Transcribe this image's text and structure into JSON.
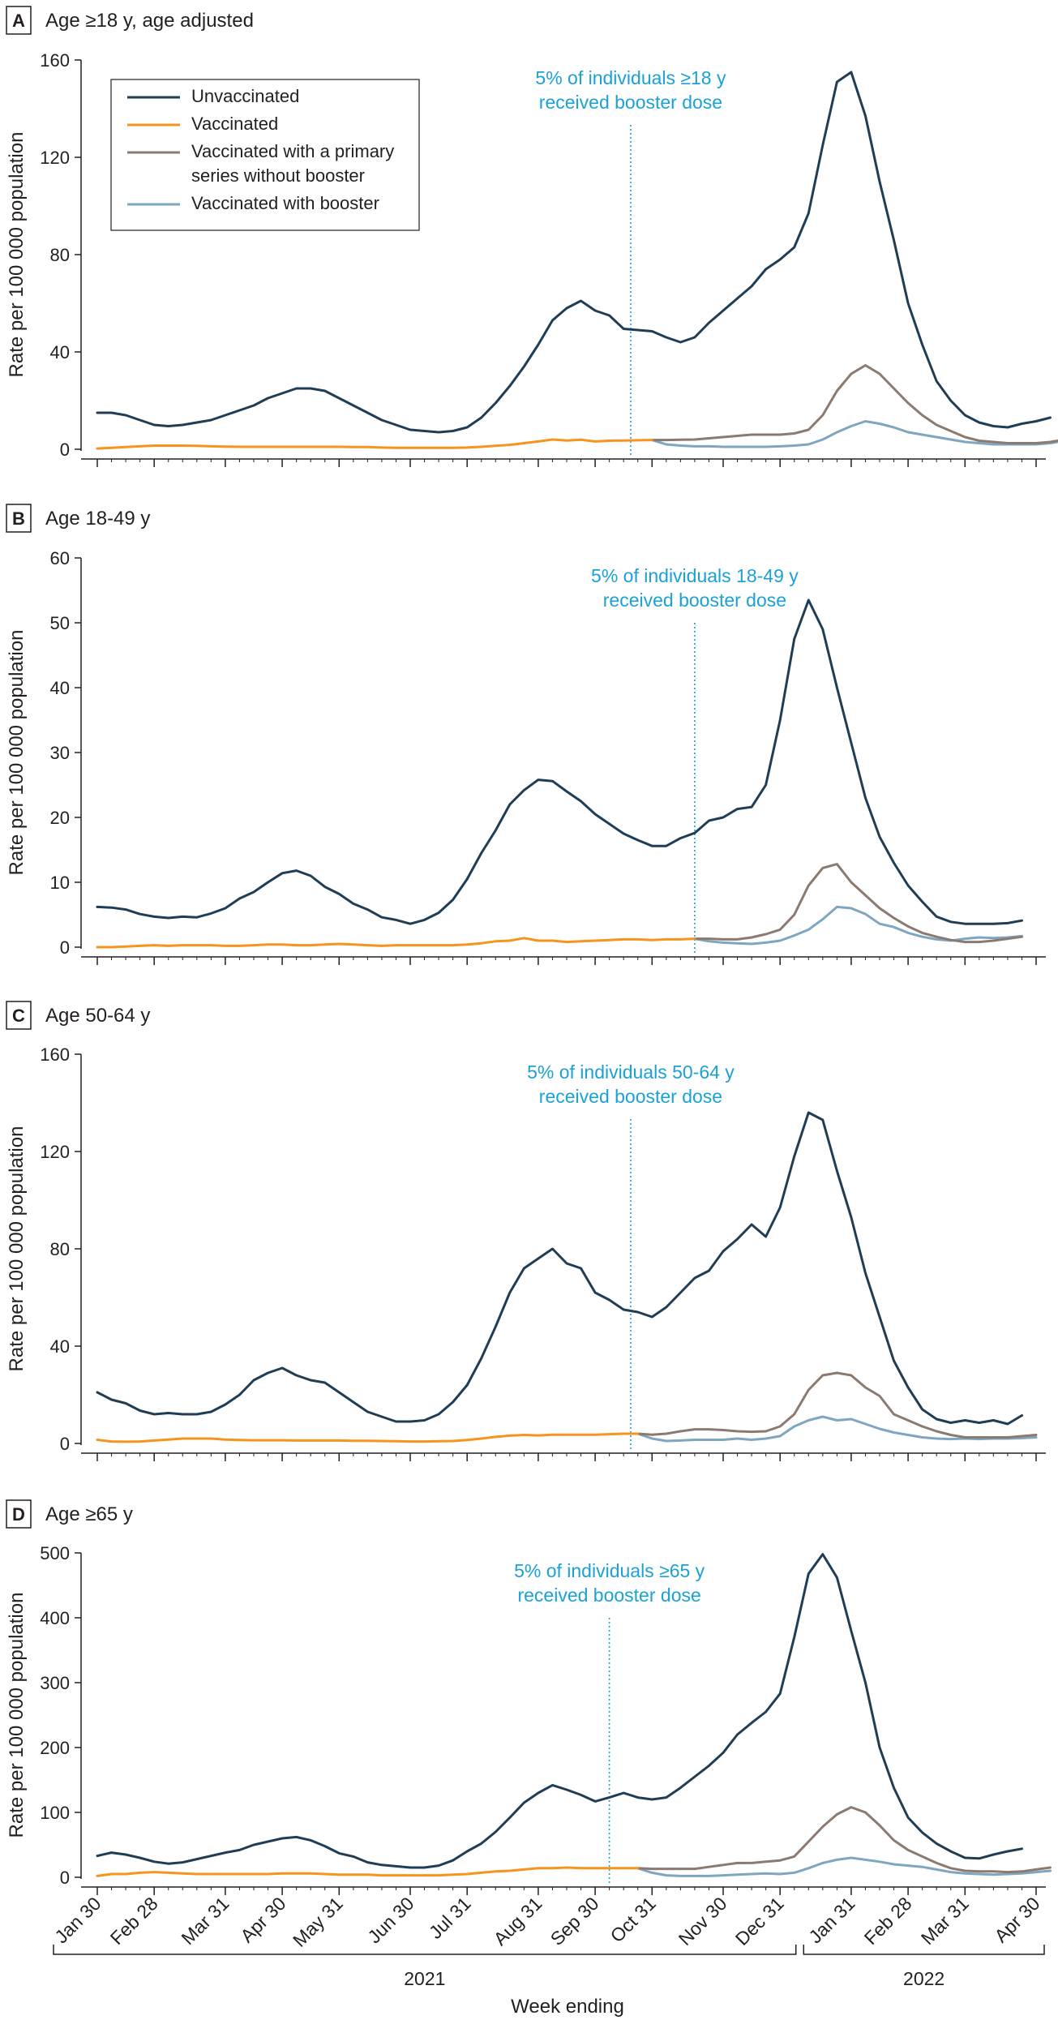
{
  "colors": {
    "unvaccinated": "#1f3e55",
    "vaccinated": "#f7941d",
    "primary_no_booster": "#8b7a6f",
    "booster": "#7fa6c0",
    "annotation": "#1ba1d6",
    "axis": "#231f20"
  },
  "legend": [
    {
      "key": "unvaccinated",
      "label": [
        "Unvaccinated"
      ]
    },
    {
      "key": "vaccinated",
      "label": [
        "Vaccinated"
      ]
    },
    {
      "key": "primary_no_booster",
      "label": [
        "Vaccinated with a primary",
        "series without booster"
      ]
    },
    {
      "key": "booster",
      "label": [
        "Vaccinated with booster"
      ]
    }
  ],
  "x_axis": {
    "label": "Week ending",
    "tick_labels": [
      "Jan 30",
      "Feb 28",
      "Mar 31",
      "Apr 30",
      "May 31",
      "Jun 30",
      "Jul 31",
      "Aug 31",
      "Sep 30",
      "Oct 31",
      "Nov 30",
      "Dec 31",
      "Jan 31",
      "Feb 28",
      "Mar 31",
      "Apr 30"
    ],
    "tick_weeks": [
      0,
      4,
      9,
      13,
      17,
      22,
      26,
      31,
      35,
      39,
      44,
      48,
      53,
      57,
      61,
      66
    ],
    "years": [
      {
        "label": "2021",
        "from_week": 0,
        "to_week": 49
      },
      {
        "label": "2022",
        "from_week": 50,
        "to_week": 66
      }
    ]
  },
  "ylabel": "Rate per 100 000 population",
  "chart_data": [
    {
      "type": "line",
      "panel": "A",
      "title": "Age ≥18 y, age adjusted",
      "ylabel": "Rate per 100 000 population",
      "ylim": [
        0,
        160
      ],
      "yticks": [
        0,
        40,
        80,
        120,
        160
      ],
      "annotation": {
        "week": 37.5,
        "lines": [
          "5% of individuals ≥18 y",
          "received booster dose"
        ]
      },
      "legend_placement": "top-left",
      "grid": false,
      "series": [
        {
          "key": "unvaccinated",
          "name": "Unvaccinated",
          "start": 0,
          "values": [
            15,
            15,
            14,
            12,
            10,
            9.5,
            10,
            11,
            12,
            14,
            16,
            18,
            21,
            23,
            25,
            25,
            24,
            21,
            18,
            15,
            12,
            10,
            8,
            7.5,
            7,
            7.5,
            9,
            13,
            19,
            26,
            34,
            43,
            53,
            58,
            61,
            57,
            55,
            49.5,
            49,
            48.5,
            46,
            44,
            46,
            52,
            57,
            62,
            67,
            74,
            78,
            83,
            97,
            125,
            151,
            155,
            137,
            110,
            86,
            60,
            43,
            28,
            20,
            14,
            11,
            9.5,
            9,
            10.5,
            11.5,
            13
          ]
        },
        {
          "key": "vaccinated",
          "name": "Vaccinated",
          "start": 0,
          "values": [
            0.3,
            0.6,
            0.9,
            1.2,
            1.5,
            1.5,
            1.5,
            1.4,
            1.2,
            1.1,
            1.0,
            1.0,
            1.0,
            1.0,
            1.0,
            1.0,
            1.0,
            1.0,
            0.9,
            0.9,
            0.7,
            0.6,
            0.6,
            0.6,
            0.6,
            0.6,
            0.7,
            1.0,
            1.4,
            1.8,
            2.5,
            3.2,
            4,
            3.6,
            3.9,
            3.2,
            3.5,
            3.6,
            3.7,
            3.8
          ]
        },
        {
          "key": "primary_no_booster",
          "name": "Vaccinated with a primary series without booster",
          "start": 39,
          "values": [
            3.8,
            3.8,
            3.9,
            4,
            4.5,
            5,
            5.5,
            6,
            6,
            6,
            6.5,
            8,
            14,
            24,
            31,
            34.5,
            31,
            25,
            19,
            14,
            10,
            7.5,
            5,
            3.5,
            3,
            2.5,
            2.5,
            2.5,
            3,
            4
          ]
        },
        {
          "key": "booster",
          "name": "Vaccinated with booster",
          "start": 39,
          "values": [
            3.8,
            2,
            1.5,
            1.2,
            1.2,
            1,
            1,
            1,
            1,
            1.2,
            1.5,
            2,
            4,
            7,
            9.5,
            11.5,
            10.5,
            9,
            7,
            6,
            5,
            4,
            3,
            2.5,
            2,
            2,
            2,
            2,
            2.5,
            3.5
          ]
        }
      ]
    },
    {
      "type": "line",
      "panel": "B",
      "title": "Age 18-49 y",
      "ylabel": "Rate per 100 000 population",
      "ylim": [
        0,
        60
      ],
      "yticks": [
        0,
        10,
        20,
        30,
        40,
        50,
        60
      ],
      "annotation": {
        "week": 42,
        "lines": [
          "5% of individuals 18-49 y",
          "received booster dose"
        ]
      },
      "grid": false,
      "series": [
        {
          "key": "unvaccinated",
          "name": "Unvaccinated",
          "start": 0,
          "values": [
            6.2,
            6.1,
            5.8,
            5.1,
            4.7,
            4.5,
            4.7,
            4.6,
            5.2,
            6.0,
            7.5,
            8.5,
            10,
            11.4,
            11.8,
            11,
            9.3,
            8.2,
            6.7,
            5.8,
            4.6,
            4.2,
            3.6,
            4.2,
            5.3,
            7.3,
            10.5,
            14.5,
            18,
            22,
            24.2,
            25.8,
            25.6,
            24,
            22.5,
            20.5,
            19,
            17.5,
            16.5,
            15.6,
            15.6,
            16.8,
            17.6,
            19.5,
            20,
            21.3,
            21.6,
            25,
            35,
            47.5,
            53.5,
            49,
            40,
            31.5,
            23,
            17,
            13,
            9.5,
            7,
            4.7,
            3.9,
            3.6,
            3.6,
            3.6,
            3.7,
            4.1
          ]
        },
        {
          "key": "vaccinated",
          "name": "Vaccinated",
          "start": 0,
          "values": [
            0.0,
            0.0,
            0.1,
            0.2,
            0.3,
            0.2,
            0.3,
            0.3,
            0.3,
            0.2,
            0.2,
            0.3,
            0.4,
            0.4,
            0.3,
            0.3,
            0.4,
            0.5,
            0.4,
            0.3,
            0.2,
            0.3,
            0.3,
            0.3,
            0.3,
            0.3,
            0.4,
            0.6,
            0.9,
            1.0,
            1.4,
            1.0,
            1.0,
            0.8,
            0.9,
            1.0,
            1.1,
            1.2,
            1.2,
            1.1,
            1.2,
            1.2,
            1.3
          ]
        },
        {
          "key": "primary_no_booster",
          "name": "Vaccinated with a primary series without booster",
          "start": 42,
          "values": [
            1.3,
            1.3,
            1.2,
            1.2,
            1.5,
            2,
            2.7,
            5,
            9.5,
            12.2,
            12.8,
            10,
            8,
            6,
            4.5,
            3.2,
            2.2,
            1.6,
            1.1,
            0.8,
            0.8,
            1.0,
            1.3,
            1.6
          ]
        },
        {
          "key": "booster",
          "name": "Vaccinated with booster",
          "start": 42,
          "values": [
            1.3,
            0.9,
            0.7,
            0.6,
            0.5,
            0.7,
            1,
            1.8,
            2.7,
            4.3,
            6.2,
            6,
            5.1,
            3.6,
            3.1,
            2.2,
            1.6,
            1.2,
            1.0,
            1.3,
            1.5,
            1.4,
            1.5,
            1.7
          ]
        }
      ]
    },
    {
      "type": "line",
      "panel": "C",
      "title": "Age 50-64 y",
      "ylabel": "Rate per 100 000 population",
      "ylim": [
        0,
        160
      ],
      "yticks": [
        0,
        40,
        80,
        120,
        160
      ],
      "annotation": {
        "week": 37.5,
        "lines": [
          "5% of individuals 50-64 y",
          "received booster dose"
        ]
      },
      "grid": false,
      "series": [
        {
          "key": "unvaccinated",
          "name": "Unvaccinated",
          "start": 0,
          "values": [
            21,
            18,
            16.5,
            13.5,
            12,
            12.5,
            12,
            12,
            13,
            16,
            20,
            26,
            29,
            31,
            28,
            26,
            25,
            21,
            17,
            13,
            11,
            9,
            9,
            9.5,
            12,
            17,
            24,
            35,
            48,
            62,
            72,
            76,
            80,
            74,
            72,
            62,
            59,
            55,
            54,
            52,
            56,
            62,
            68,
            71,
            79,
            84,
            90,
            85,
            97,
            118,
            136,
            133,
            112,
            93,
            70,
            52,
            34,
            23,
            14,
            10,
            8.5,
            9.5,
            8.5,
            9.5,
            8,
            11.5
          ]
        },
        {
          "key": "vaccinated",
          "name": "Vaccinated",
          "start": 0,
          "values": [
            1.5,
            0.8,
            0.7,
            0.8,
            1.2,
            1.6,
            2,
            2,
            2,
            1.6,
            1.4,
            1.3,
            1.3,
            1.3,
            1.2,
            1.2,
            1.2,
            1.2,
            1.1,
            1.1,
            1.0,
            0.9,
            0.8,
            0.8,
            0.9,
            1.0,
            1.4,
            2,
            2.7,
            3.2,
            3.5,
            3.3,
            3.6,
            3.6,
            3.6,
            3.6,
            3.8,
            4,
            4
          ]
        },
        {
          "key": "primary_no_booster",
          "name": "Vaccinated with a primary series without booster",
          "start": 38,
          "values": [
            4,
            3.6,
            4,
            5,
            5.8,
            5.8,
            5.5,
            5,
            4.8,
            5,
            7,
            12,
            22,
            28,
            29,
            28,
            23,
            19.5,
            12,
            9.5,
            7,
            5,
            3.5,
            2.5,
            2.5,
            2.5,
            2.5,
            3,
            3.5
          ]
        },
        {
          "key": "booster",
          "name": "Vaccinated with booster",
          "start": 38,
          "values": [
            4,
            2,
            1,
            1.2,
            1.5,
            1.5,
            1.5,
            2,
            1.5,
            2,
            3,
            7,
            9.5,
            11,
            9.5,
            10,
            8,
            6,
            4.5,
            3.5,
            2.5,
            2,
            1.8,
            2,
            1.8,
            2,
            2,
            2.2,
            2.5
          ]
        }
      ]
    },
    {
      "type": "line",
      "panel": "D",
      "title": "Age ≥65 y",
      "ylabel": "Rate per 100 000 population",
      "ylim": [
        0,
        500
      ],
      "yticks": [
        0,
        100,
        200,
        300,
        400,
        500
      ],
      "annotation": {
        "week": 36,
        "lines": [
          "5% of individuals ≥65 y",
          "received booster dose"
        ]
      },
      "grid": false,
      "series": [
        {
          "key": "unvaccinated",
          "name": "Unvaccinated",
          "start": 0,
          "values": [
            33,
            38,
            35,
            30,
            24,
            21,
            23,
            28,
            33,
            38,
            42,
            50,
            55,
            60,
            62,
            57,
            48,
            37,
            32,
            23,
            19,
            17,
            15,
            15,
            18,
            26,
            40,
            52,
            70,
            92,
            115,
            130,
            142,
            135,
            127,
            117,
            123,
            130,
            123,
            120,
            123,
            138,
            155,
            172,
            192,
            220,
            238,
            255,
            283,
            370,
            468,
            498,
            462,
            380,
            300,
            200,
            138,
            92,
            69,
            52,
            40,
            30,
            29,
            35,
            40,
            44
          ]
        },
        {
          "key": "vaccinated",
          "name": "Vaccinated",
          "start": 0,
          "values": [
            2,
            5,
            5,
            7,
            8,
            7,
            6,
            5,
            5,
            5,
            5,
            5,
            5,
            6,
            6,
            6,
            5,
            4,
            4,
            4,
            3,
            3,
            3,
            3,
            3,
            4,
            5,
            7,
            9,
            10,
            12,
            14,
            14,
            15,
            14,
            14,
            14,
            14,
            14
          ]
        },
        {
          "key": "primary_no_booster",
          "name": "Vaccinated with a primary series without booster",
          "start": 38,
          "values": [
            14,
            13,
            13,
            13,
            13,
            16,
            19,
            22,
            22,
            24,
            26,
            32,
            55,
            78,
            97,
            108,
            100,
            80,
            57,
            42,
            32,
            22,
            14,
            10,
            9,
            9,
            8,
            9,
            12,
            15
          ]
        },
        {
          "key": "booster",
          "name": "Vaccinated with booster",
          "start": 38,
          "values": [
            14,
            7,
            3,
            2,
            2,
            2,
            3,
            4,
            5,
            6,
            5,
            7,
            14,
            22,
            27,
            30,
            27,
            24,
            20,
            18,
            16,
            12,
            8,
            6,
            5,
            4,
            5,
            6,
            8,
            10
          ]
        }
      ]
    }
  ]
}
